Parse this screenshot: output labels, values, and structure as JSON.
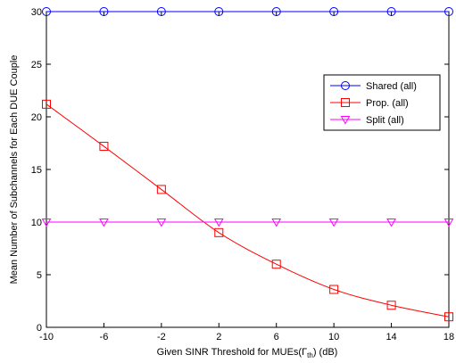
{
  "chart_data": {
    "type": "line",
    "x": [
      -10,
      -6,
      -2,
      2,
      6,
      10,
      14,
      18
    ],
    "xlim": [
      -10,
      18
    ],
    "ylim": [
      0,
      30
    ],
    "xticks": [
      "-10",
      "-6",
      "-2",
      "2",
      "6",
      "10",
      "14",
      "18"
    ],
    "yticks": [
      "0",
      "5",
      "10",
      "15",
      "20",
      "25",
      "30"
    ],
    "xlabel": "Given SINR Threshold for MUEs(",
    "xlabel_symbol": "Γ",
    "xlabel_subscript": "th",
    "xlabel_suffix": ") (dB)",
    "ylabel": "Mean Number of Subchannels for Each DUE Couple",
    "grid": false,
    "legend_position": "right",
    "series": [
      {
        "name": "Shared (all)",
        "color": "#0000ff",
        "marker": "circle",
        "values": [
          30,
          30,
          30,
          30,
          30,
          30,
          30,
          30
        ]
      },
      {
        "name": "Prop. (all)",
        "color": "#ff0000",
        "marker": "square",
        "values": [
          21.2,
          17.2,
          13.1,
          9.0,
          6.0,
          3.6,
          2.1,
          1.0
        ]
      },
      {
        "name": "Split (all)",
        "color": "#ff00ff",
        "marker": "triangle-down",
        "values": [
          10,
          10,
          10,
          10,
          10,
          10,
          10,
          10
        ]
      }
    ]
  }
}
